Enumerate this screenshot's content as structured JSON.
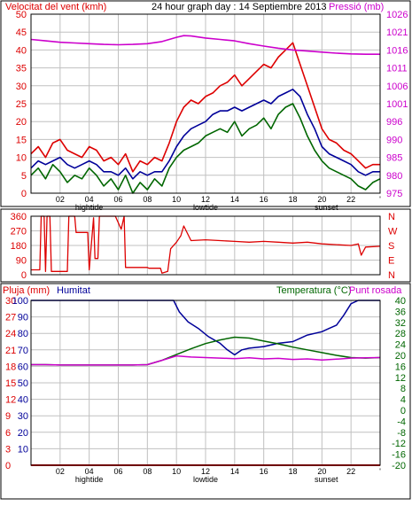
{
  "header": {
    "wind_title": "Velocitat del vent (kmh)",
    "main_title": "24 hour graph day : 14 Septiembre 2013",
    "pressure_title": "Pressió (mb)"
  },
  "bottom_header": {
    "rain_title": "Pluja (mm)",
    "humidity_title": "Humitat",
    "temp_title": "Temperatura (°C)",
    "dew_title": "Punt rosada"
  },
  "colors": {
    "red": "#dd0000",
    "blue": "#000099",
    "green": "#006600",
    "magenta": "#cc00cc",
    "grid": "#c0c0c0"
  },
  "x_axis": {
    "hour_labels": [
      "02",
      "04",
      "06",
      "08",
      "10",
      "12",
      "14",
      "16",
      "18",
      "20",
      "22",
      "'"
    ],
    "tide_labels": [
      {
        "text": "hightide",
        "hour": 4
      },
      {
        "text": "lowtide",
        "hour": 12
      },
      {
        "text": "sunset",
        "hour": 20.3
      }
    ]
  },
  "chart_data": [
    {
      "type": "line",
      "name": "wind-and-pressure",
      "x_range": [
        0,
        24
      ],
      "y_left_ticks": [
        "0",
        "5",
        "10",
        "15",
        "20",
        "25",
        "30",
        "35",
        "40",
        "45",
        "50"
      ],
      "ylim_left": [
        0,
        50
      ],
      "y_right_ticks": [
        "975",
        "980",
        "985",
        "990",
        "996",
        "1001",
        "1006",
        "1011",
        "1016",
        "1021",
        "1026"
      ],
      "ylim_right": [
        975,
        1026
      ],
      "series": [
        {
          "name": "Velocitat del vent",
          "axis": "left",
          "color": "#dd0000",
          "x": [
            0,
            0.5,
            1,
            1.5,
            2,
            2.5,
            3,
            3.5,
            4,
            4.5,
            5,
            5.5,
            6,
            6.5,
            7,
            7.5,
            8,
            8.5,
            9,
            9.5,
            10,
            10.5,
            11,
            11.5,
            12,
            12.5,
            13,
            13.5,
            14,
            14.5,
            15,
            15.5,
            16,
            16.5,
            17,
            17.5,
            18,
            18.5,
            19,
            19.5,
            20,
            20.5,
            21,
            21.5,
            22,
            22.5,
            23,
            23.5,
            24
          ],
          "y": [
            11,
            13,
            10,
            14,
            15,
            12,
            11,
            10,
            13,
            12,
            9,
            10,
            8,
            11,
            6,
            9,
            8,
            10,
            9,
            14,
            20,
            24,
            26,
            25,
            27,
            28,
            30,
            31,
            33,
            30,
            32,
            34,
            36,
            35,
            38,
            40,
            42,
            36,
            30,
            24,
            18,
            15,
            14,
            12,
            11,
            9,
            7,
            8,
            8
          ]
        },
        {
          "name": "Ratxa de vent",
          "axis": "left",
          "color": "#000099",
          "x": [
            0,
            0.5,
            1,
            1.5,
            2,
            2.5,
            3,
            3.5,
            4,
            4.5,
            5,
            5.5,
            6,
            6.5,
            7,
            7.5,
            8,
            8.5,
            9,
            9.5,
            10,
            10.5,
            11,
            11.5,
            12,
            12.5,
            13,
            13.5,
            14,
            14.5,
            15,
            15.5,
            16,
            16.5,
            17,
            17.5,
            18,
            18.5,
            19,
            19.5,
            20,
            20.5,
            21,
            21.5,
            22,
            22.5,
            23,
            23.5,
            24
          ],
          "y": [
            7,
            9,
            8,
            9,
            10,
            8,
            7,
            8,
            9,
            8,
            6,
            6,
            5,
            7,
            4,
            6,
            5,
            6,
            6,
            9,
            13,
            16,
            18,
            19,
            20,
            22,
            23,
            23,
            24,
            23,
            24,
            25,
            26,
            25,
            27,
            28,
            29,
            27,
            22,
            18,
            13,
            11,
            10,
            9,
            8,
            6,
            5,
            6,
            6
          ]
        },
        {
          "name": "Velocitat mitjana",
          "axis": "left",
          "color": "#006600",
          "x": [
            0,
            0.5,
            1,
            1.5,
            2,
            2.5,
            3,
            3.5,
            4,
            4.5,
            5,
            5.5,
            6,
            6.5,
            7,
            7.5,
            8,
            8.5,
            9,
            9.5,
            10,
            10.5,
            11,
            11.5,
            12,
            12.5,
            13,
            13.5,
            14,
            14.5,
            15,
            15.5,
            16,
            16.5,
            17,
            17.5,
            18,
            18.5,
            19,
            19.5,
            20,
            20.5,
            21,
            21.5,
            22,
            22.5,
            23,
            23.5,
            24
          ],
          "y": [
            5,
            7,
            4,
            8,
            6,
            3,
            5,
            4,
            7,
            5,
            2,
            4,
            1,
            5,
            0,
            3,
            1,
            4,
            2,
            7,
            10,
            12,
            13,
            14,
            16,
            17,
            18,
            17,
            20,
            16,
            18,
            19,
            21,
            18,
            22,
            24,
            25,
            21,
            16,
            12,
            9,
            7,
            6,
            5,
            4,
            2,
            1,
            3,
            4
          ]
        },
        {
          "name": "Pressió",
          "axis": "right",
          "color": "#cc00cc",
          "x": [
            0,
            1,
            2,
            3,
            4,
            5,
            6,
            7,
            8,
            9,
            10,
            10.5,
            11,
            12,
            13,
            14,
            15,
            16,
            17,
            18,
            19,
            20,
            21,
            22,
            23,
            24
          ],
          "y": [
            1018.8,
            1018.4,
            1018,
            1017.8,
            1017.6,
            1017.4,
            1017.3,
            1017.4,
            1017.6,
            1018.2,
            1019.4,
            1019.9,
            1019.8,
            1019.2,
            1018.8,
            1018.4,
            1017.6,
            1016.9,
            1016.3,
            1015.8,
            1015.5,
            1015.2,
            1014.9,
            1014.7,
            1014.6,
            1014.6
          ]
        }
      ]
    },
    {
      "type": "line",
      "name": "wind-direction",
      "x_range": [
        0,
        24
      ],
      "y_left_ticks": [
        "0",
        "90",
        "180",
        "270",
        "360"
      ],
      "ylim_left": [
        0,
        360
      ],
      "y_right_ticks": [
        "N",
        "E",
        "S",
        "W",
        "N"
      ],
      "series": [
        {
          "name": "Direcció del vent",
          "color": "#dd0000",
          "x": [
            0,
            0.6,
            0.7,
            0.9,
            1.0,
            1.1,
            1.3,
            1.4,
            2.5,
            2.6,
            3.0,
            3.1,
            3.9,
            4.0,
            4.3,
            4.4,
            4.6,
            4.7,
            5.8,
            6.2,
            6.4,
            6.5,
            8.0,
            8.1,
            8.9,
            9.0,
            9.4,
            9.6,
            10.0,
            10.3,
            10.5,
            11,
            12,
            13,
            14,
            15,
            16,
            17,
            18,
            19,
            20,
            21,
            22,
            22.5,
            22.7,
            23,
            24
          ],
          "y": [
            30,
            30,
            360,
            360,
            20,
            360,
            360,
            20,
            20,
            360,
            360,
            260,
            260,
            30,
            350,
            100,
            100,
            360,
            360,
            280,
            360,
            45,
            45,
            40,
            40,
            10,
            20,
            160,
            200,
            240,
            300,
            210,
            215,
            210,
            205,
            200,
            205,
            200,
            195,
            200,
            190,
            185,
            180,
            190,
            120,
            170,
            175
          ]
        }
      ]
    },
    {
      "type": "line",
      "name": "rain-humidity-temperature",
      "x_range": [
        0,
        24
      ],
      "y_rain_ticks": [
        "0",
        "3",
        "6",
        "9",
        "12",
        "15",
        "18",
        "21",
        "24",
        "27",
        "30"
      ],
      "ylim_rain": [
        0,
        30
      ],
      "y_humidity_ticks": [
        "10",
        "20",
        "30",
        "40",
        "50",
        "60",
        "70",
        "80",
        "90",
        "100"
      ],
      "ylim_humidity": [
        10,
        100
      ],
      "y_temp_ticks": [
        "-20",
        "-16",
        "-12",
        "-8",
        "-4",
        "0",
        "4",
        "8",
        "12",
        "16",
        "20",
        "24",
        "28",
        "32",
        "36",
        "40"
      ],
      "ylim_temp": [
        -20,
        40
      ],
      "series": [
        {
          "name": "Pluja",
          "axis": "rain",
          "color": "#dd0000",
          "x": [
            0,
            24
          ],
          "y": [
            0,
            0
          ]
        },
        {
          "name": "Humitat",
          "axis": "humidity",
          "color": "#000099",
          "x": [
            0,
            0.5,
            1,
            2,
            3,
            4,
            5,
            6,
            7,
            8,
            9,
            9.8,
            10.2,
            10.8,
            11.5,
            12.2,
            13,
            13.5,
            14,
            14.5,
            15,
            16,
            17,
            18,
            18.5,
            19,
            20,
            20.5,
            21,
            21.5,
            22,
            22.5,
            23,
            24
          ],
          "y": [
            100,
            100,
            100,
            100,
            100,
            100,
            100,
            100,
            100,
            100,
            100,
            100,
            93,
            87,
            83,
            78,
            74,
            70,
            67,
            70,
            71,
            72,
            74,
            75,
            77,
            79,
            81,
            83,
            85,
            91,
            98,
            100,
            100,
            100
          ]
        },
        {
          "name": "Temperatura",
          "axis": "temp",
          "color": "#006600",
          "x": [
            0,
            1,
            2,
            3,
            4,
            5,
            6,
            7,
            8,
            9,
            10,
            11,
            12,
            13,
            14,
            15,
            16,
            17,
            18,
            19,
            20,
            21,
            22,
            23,
            24
          ],
          "y": [
            16.6,
            16.6,
            16.5,
            16.5,
            16.5,
            16.5,
            16.5,
            16.5,
            16.6,
            18.2,
            20.3,
            22.4,
            24.3,
            25.6,
            26.6,
            26.3,
            25.2,
            24.2,
            23.0,
            22.0,
            21.0,
            20.0,
            19.2,
            19.0,
            19.2
          ]
        },
        {
          "name": "Punt rosada",
          "axis": "temp",
          "color": "#cc00cc",
          "x": [
            0,
            1,
            2,
            3,
            4,
            5,
            6,
            7,
            8,
            9,
            10,
            10.5,
            11,
            12,
            13,
            14,
            15,
            16,
            17,
            18,
            19,
            20,
            21,
            22,
            23,
            24
          ],
          "y": [
            16.6,
            16.6,
            16.5,
            16.5,
            16.5,
            16.5,
            16.5,
            16.5,
            16.6,
            18.2,
            19.8,
            19.6,
            19.4,
            19.2,
            19.0,
            18.8,
            19.1,
            18.7,
            18.9,
            18.5,
            18.7,
            18.3,
            18.6,
            19.0,
            19.1,
            19.2
          ]
        }
      ]
    }
  ]
}
